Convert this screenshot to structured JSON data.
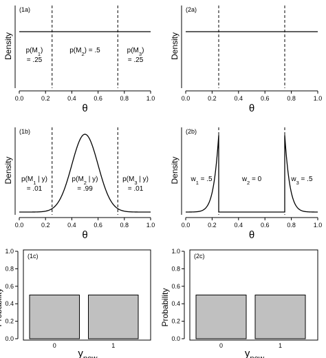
{
  "chart_data": [
    {
      "panel": "(1a)",
      "type": "line",
      "ylabel": "Density",
      "xlabel": "θ",
      "xlim": [
        0,
        1
      ],
      "xticks": [
        "0.0",
        "0.2",
        "0.4",
        "0.6",
        "0.8",
        "1.0"
      ],
      "curve": "uniform",
      "vlines": [
        0.25,
        0.75
      ],
      "annotations": [
        {
          "x": 0.115,
          "rows": [
            {
              "main": "p(M",
              "sub": "1",
              "tail": ")"
            },
            {
              "main": "= .25"
            }
          ]
        },
        {
          "x": 0.5,
          "rows": [
            {
              "main": "p(M",
              "sub": "2",
              "tail": ") = .5"
            }
          ]
        },
        {
          "x": 0.885,
          "rows": [
            {
              "main": "p(M",
              "sub": "3",
              "tail": ")"
            },
            {
              "main": "= .25"
            }
          ]
        }
      ]
    },
    {
      "panel": "(2a)",
      "type": "line",
      "ylabel": "Density",
      "xlabel": "θ",
      "xlim": [
        0,
        1
      ],
      "xticks": [
        "0.0",
        "0.2",
        "0.4",
        "0.6",
        "0.8",
        "1.0"
      ],
      "curve": "uniform",
      "vlines": [
        0.25,
        0.75
      ],
      "annotations": []
    },
    {
      "panel": "(1b)",
      "type": "line",
      "ylabel": "Density",
      "xlabel": "θ",
      "xlim": [
        0,
        1
      ],
      "xticks": [
        "0.0",
        "0.2",
        "0.4",
        "0.6",
        "0.8",
        "1.0"
      ],
      "curve": "bell",
      "curve_center": 0.5,
      "curve_sd": 0.1,
      "vlines": [
        0.25,
        0.75
      ],
      "annotations": [
        {
          "x": 0.115,
          "rows": [
            {
              "main": "p(M",
              "sub": "1",
              "tail": " | y)"
            },
            {
              "main": "= .01"
            }
          ]
        },
        {
          "x": 0.5,
          "rows": [
            {
              "main": "p(M",
              "sub": "2",
              "tail": " | y)"
            },
            {
              "main": "= .99"
            }
          ]
        },
        {
          "x": 0.885,
          "rows": [
            {
              "main": "p(M",
              "sub": "3",
              "tail": " | y)"
            },
            {
              "main": "= .01"
            }
          ]
        }
      ]
    },
    {
      "panel": "(2b)",
      "type": "line",
      "ylabel": "Density",
      "xlabel": "θ",
      "xlim": [
        0,
        1
      ],
      "xticks": [
        "0.0",
        "0.2",
        "0.4",
        "0.6",
        "0.8",
        "1.0"
      ],
      "curve": "truncated-tails",
      "curve_center": 0.5,
      "curve_sd": 0.1,
      "vlines": [
        0.25,
        0.75
      ],
      "annotations": [
        {
          "x": 0.12,
          "rows": [
            {
              "main": "w",
              "sub": "1",
              "tail": " = .5"
            }
          ]
        },
        {
          "x": 0.5,
          "rows": [
            {
              "main": "w",
              "sub": "2",
              "tail": " = 0"
            }
          ]
        },
        {
          "x": 0.88,
          "rows": [
            {
              "main": "w",
              "sub": "3",
              "tail": " = .5"
            }
          ]
        }
      ]
    },
    {
      "panel": "(1c)",
      "type": "bar",
      "ylabel": "Probability",
      "xlabel": {
        "main": "y",
        "sub": "new"
      },
      "ylim": [
        0,
        1
      ],
      "yticks": [
        "0.0",
        "0.2",
        "0.4",
        "0.6",
        "0.8",
        "1.0"
      ],
      "categories": [
        "0",
        "1"
      ],
      "values": [
        0.5,
        0.5
      ]
    },
    {
      "panel": "(2c)",
      "type": "bar",
      "ylabel": "Probability",
      "xlabel": {
        "main": "y",
        "sub": "new"
      },
      "ylim": [
        0,
        1
      ],
      "yticks": [
        "0.0",
        "0.2",
        "0.4",
        "0.6",
        "0.8",
        "1.0"
      ],
      "categories": [
        "0",
        "1"
      ],
      "values": [
        0.5,
        0.5
      ]
    }
  ]
}
